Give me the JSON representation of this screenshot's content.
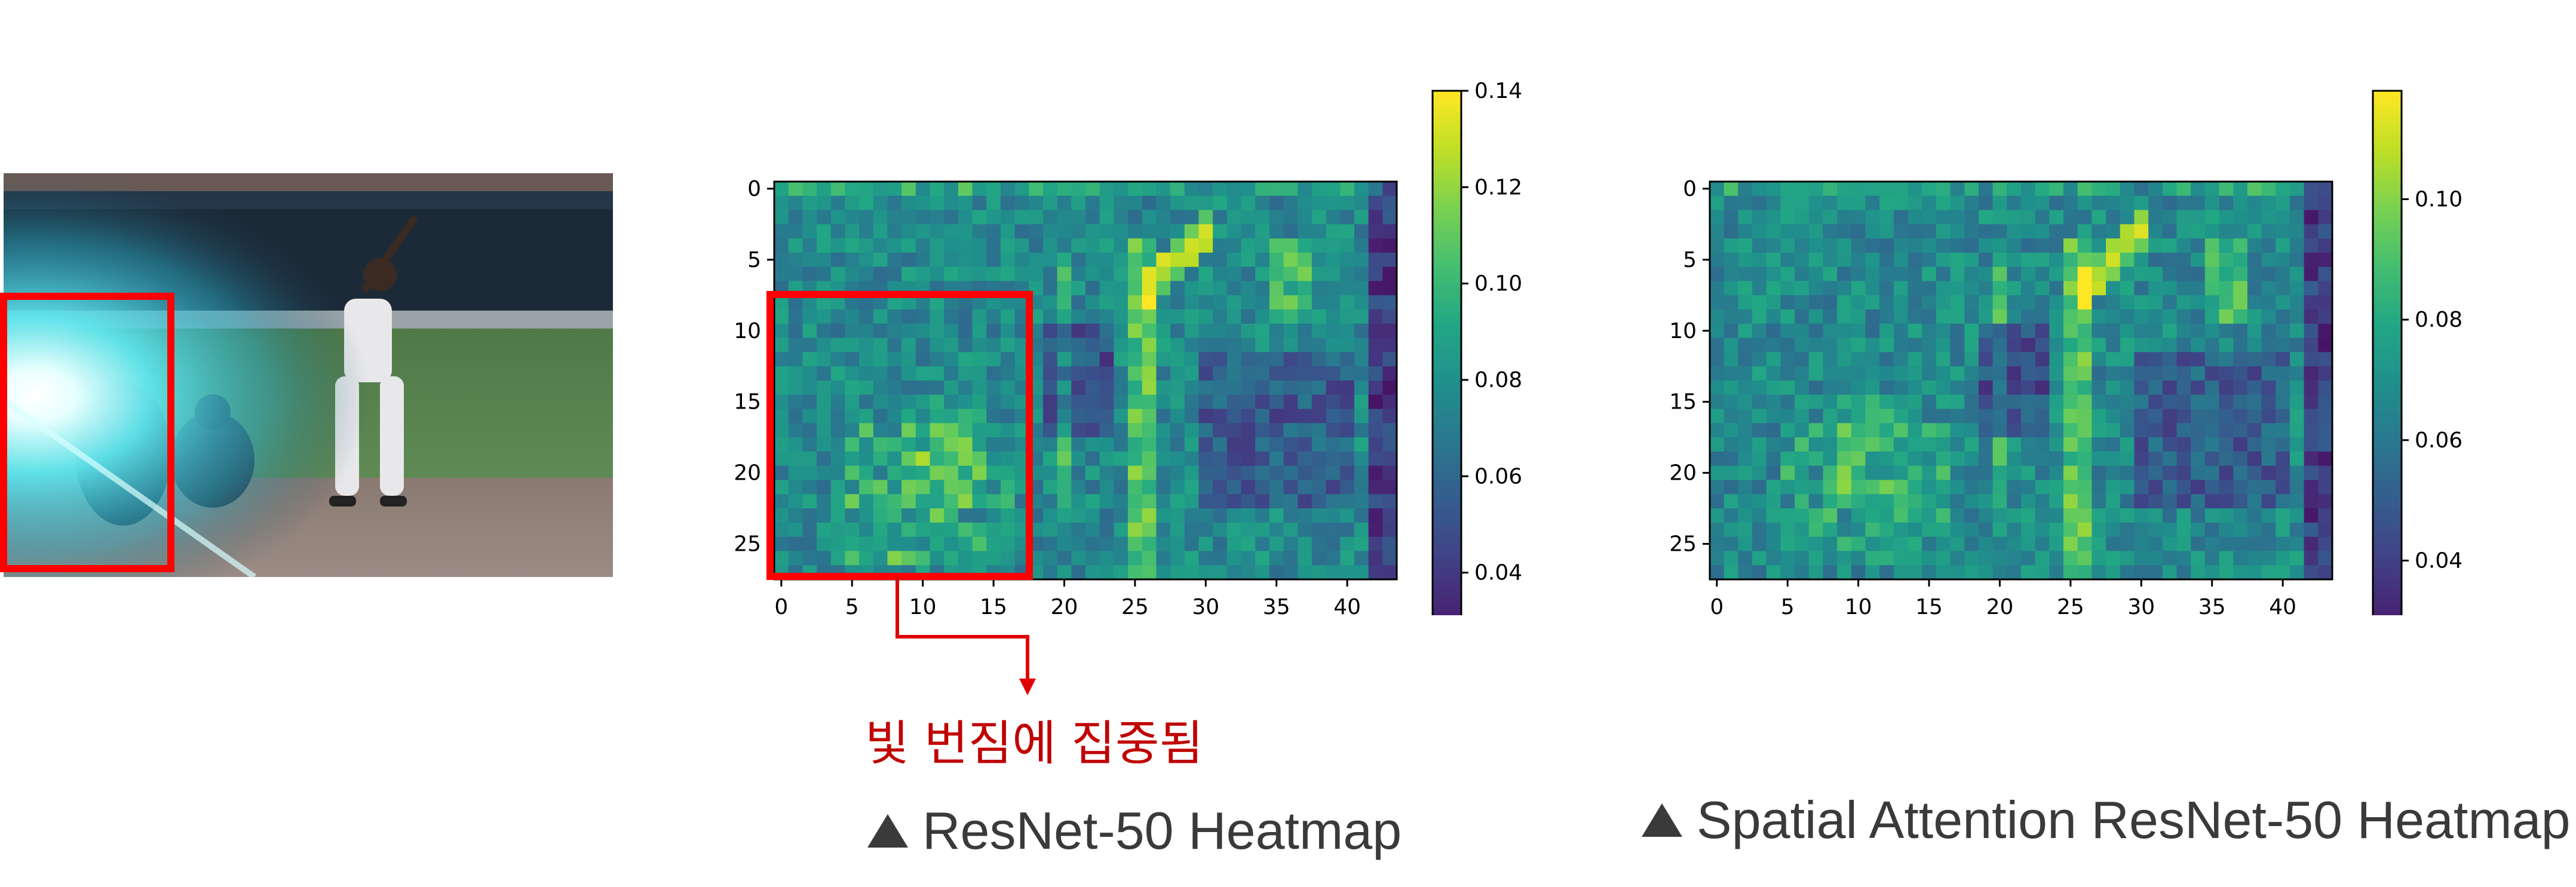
{
  "photo": {
    "name": "baseball batter photo with lens flare"
  },
  "annotation": {
    "text": "빛 번짐에 집중됨",
    "color": "#c00000",
    "box_color": "#ff0000"
  },
  "chart_data": [
    {
      "type": "heatmap",
      "caption": "ResNet-50 Heatmap",
      "rows": 28,
      "cols": 44,
      "xticks": [
        "0",
        "5",
        "10",
        "15",
        "20",
        "25",
        "30",
        "35",
        "40"
      ],
      "yticks": [
        "0",
        "5",
        "10",
        "15",
        "20",
        "25"
      ],
      "colorbar": {
        "min": 0.02,
        "max": 0.14,
        "ticks": [
          "0.04",
          "0.06",
          "0.08",
          "0.10",
          "0.12",
          "0.14"
        ]
      },
      "colormap": "viridis"
    },
    {
      "type": "heatmap",
      "caption": "Spatial Attention ResNet-50 Heatmap",
      "rows": 28,
      "cols": 44,
      "xticks": [
        "0",
        "5",
        "10",
        "15",
        "20",
        "25",
        "30",
        "35",
        "40"
      ],
      "yticks": [
        "0",
        "5",
        "10",
        "15",
        "20",
        "25"
      ],
      "colorbar": {
        "min": 0.022,
        "max": 0.118,
        "ticks": [
          "0.04",
          "0.06",
          "0.08",
          "0.10"
        ]
      },
      "colormap": "viridis"
    }
  ]
}
